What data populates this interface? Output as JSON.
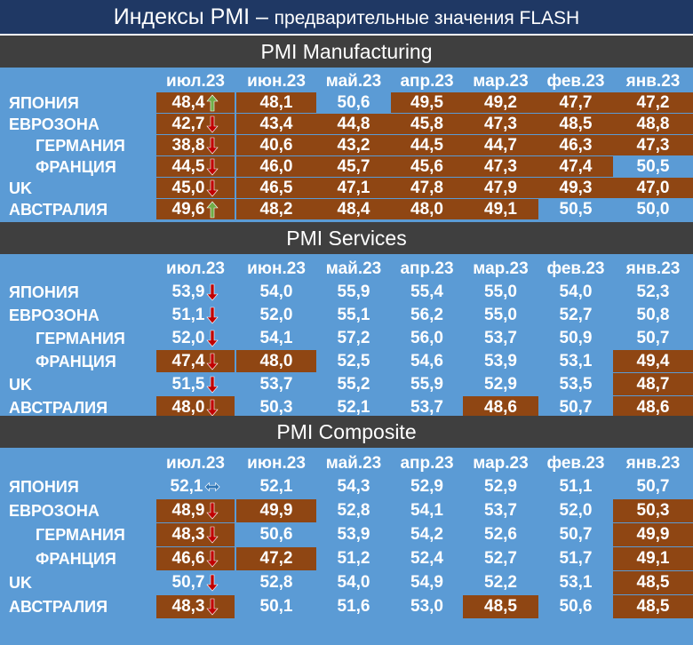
{
  "title": {
    "main": "Индексы PMI –",
    "sub": "предварительные значения FLASH"
  },
  "months": [
    "июл.23",
    "июн.23",
    "май.23",
    "апр.23",
    "мар.23",
    "фев.23",
    "янв.23"
  ],
  "colors": {
    "title_bg": "#1f3864",
    "section_bg": "#3f3f3f",
    "blue": "#5b9bd5",
    "brown": "#8f4613",
    "arrow_up": "#70ad47",
    "arrow_down": "#c00000"
  },
  "sections": [
    {
      "title": "PMI Manufacturing",
      "rows": [
        {
          "label": "ЯПОНИЯ",
          "indent": false,
          "values": [
            "48,4",
            "48,1",
            "50,6",
            "49,5",
            "49,2",
            "47,7",
            "47,2"
          ],
          "arrow": "up"
        },
        {
          "label": "ЕВРОЗОНА",
          "indent": false,
          "values": [
            "42,7",
            "43,4",
            "44,8",
            "45,8",
            "47,3",
            "48,5",
            "48,8"
          ],
          "arrow": "down"
        },
        {
          "label": "ГЕРМАНИЯ",
          "indent": true,
          "values": [
            "38,8",
            "40,6",
            "43,2",
            "44,5",
            "44,7",
            "46,3",
            "47,3"
          ],
          "arrow": "down"
        },
        {
          "label": "ФРАНЦИЯ",
          "indent": true,
          "values": [
            "44,5",
            "46,0",
            "45,7",
            "45,6",
            "47,3",
            "47,4",
            "50,5"
          ],
          "arrow": "down"
        },
        {
          "label": "UK",
          "indent": false,
          "values": [
            "45,0",
            "46,5",
            "47,1",
            "47,8",
            "47,9",
            "49,3",
            "47,0"
          ],
          "arrow": "down"
        },
        {
          "label": "АВСТРАЛИЯ",
          "indent": false,
          "values": [
            "49,6",
            "48,2",
            "48,4",
            "48,0",
            "49,1",
            "50,5",
            "50,0"
          ],
          "arrow": "up"
        }
      ]
    },
    {
      "title": "PMI Services",
      "rows": [
        {
          "label": "ЯПОНИЯ",
          "indent": false,
          "values": [
            "53,9",
            "54,0",
            "55,9",
            "55,4",
            "55,0",
            "54,0",
            "52,3"
          ],
          "arrow": "down"
        },
        {
          "label": "ЕВРОЗОНА",
          "indent": false,
          "values": [
            "51,1",
            "52,0",
            "55,1",
            "56,2",
            "55,0",
            "52,7",
            "50,8"
          ],
          "arrow": "down"
        },
        {
          "label": "ГЕРМАНИЯ",
          "indent": true,
          "values": [
            "52,0",
            "54,1",
            "57,2",
            "56,0",
            "53,7",
            "50,9",
            "50,7"
          ],
          "arrow": "down"
        },
        {
          "label": "ФРАНЦИЯ",
          "indent": true,
          "values": [
            "47,4",
            "48,0",
            "52,5",
            "54,6",
            "53,9",
            "53,1",
            "49,4"
          ],
          "arrow": "down"
        },
        {
          "label": "UK",
          "indent": false,
          "values": [
            "51,5",
            "53,7",
            "55,2",
            "55,9",
            "52,9",
            "53,5",
            "48,7"
          ],
          "arrow": "down"
        },
        {
          "label": "АВСТРАЛИЯ",
          "indent": false,
          "values": [
            "48,0",
            "50,3",
            "52,1",
            "53,7",
            "48,6",
            "50,7",
            "48,6"
          ],
          "arrow": "down"
        }
      ]
    },
    {
      "title": "PMI Composite",
      "rows": [
        {
          "label": "ЯПОНИЯ",
          "indent": false,
          "values": [
            "52,1",
            "52,1",
            "54,3",
            "52,9",
            "52,9",
            "51,1",
            "50,7"
          ],
          "arrow": "flat"
        },
        {
          "label": "ЕВРОЗОНА",
          "indent": false,
          "values": [
            "48,9",
            "49,9",
            "52,8",
            "54,1",
            "53,7",
            "52,0",
            "50,3"
          ],
          "arrow": "down"
        },
        {
          "label": "ГЕРМАНИЯ",
          "indent": true,
          "values": [
            "48,3",
            "50,6",
            "53,9",
            "54,2",
            "52,6",
            "50,7",
            "49,9"
          ],
          "arrow": "down"
        },
        {
          "label": "ФРАНЦИЯ",
          "indent": true,
          "values": [
            "46,6",
            "47,2",
            "51,2",
            "52,4",
            "52,7",
            "51,7",
            "49,1"
          ],
          "arrow": "down"
        },
        {
          "label": "UK",
          "indent": false,
          "values": [
            "50,7",
            "52,8",
            "54,0",
            "54,9",
            "52,2",
            "53,1",
            "48,5"
          ],
          "arrow": "down"
        },
        {
          "label": "АВСТРАЛИЯ",
          "indent": false,
          "values": [
            "48,3",
            "50,1",
            "51,6",
            "53,0",
            "48,5",
            "50,6",
            "48,5"
          ],
          "arrow": "down"
        }
      ]
    }
  ]
}
